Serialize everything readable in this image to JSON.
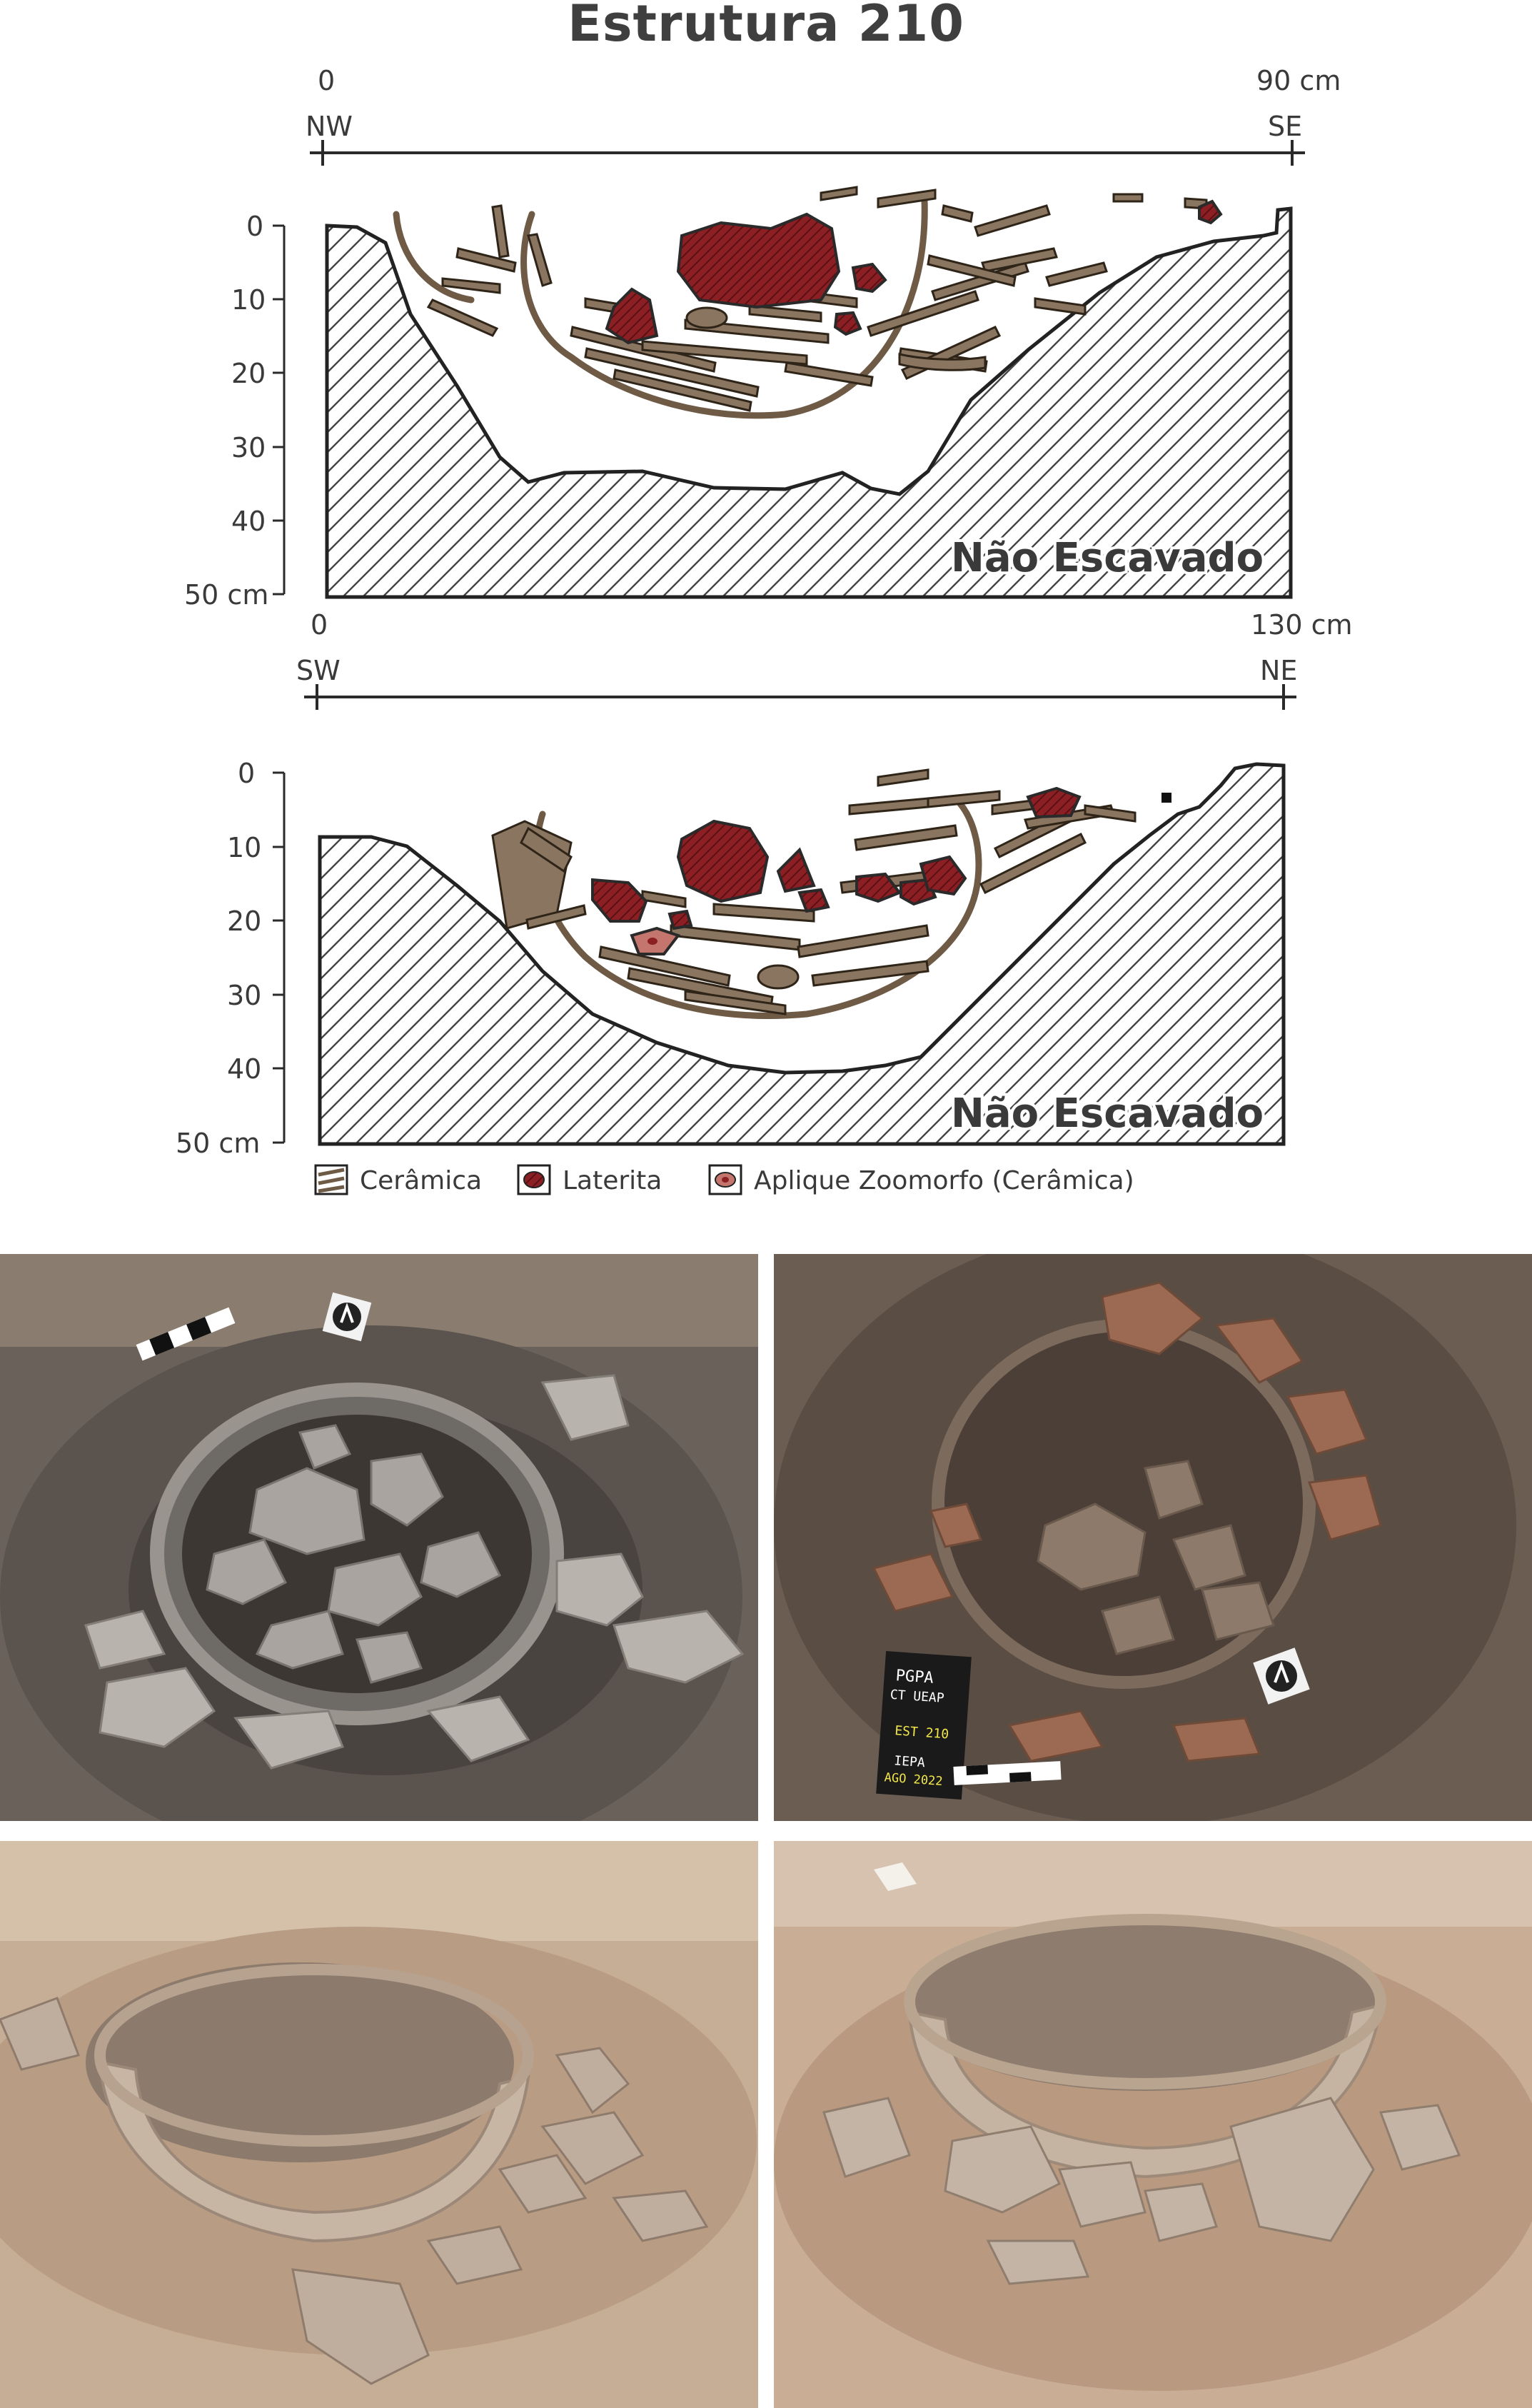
{
  "title": "Estrutura 210",
  "profile_nw_se": {
    "x_start": "0",
    "x_end": "90 cm",
    "dir_left": "NW",
    "dir_right": "SE",
    "depth_ticks": [
      "0",
      "10",
      "20",
      "30",
      "40",
      "50 cm"
    ],
    "unexcavated_label": "Não Escavado"
  },
  "profile_sw_ne": {
    "x_start": "0",
    "x_end": "130 cm",
    "dir_left": "SW",
    "dir_right": "NE",
    "depth_ticks": [
      "0",
      "10",
      "20",
      "30",
      "40",
      "50 cm"
    ],
    "unexcavated_label": "Não Escavado"
  },
  "legend": {
    "ceramic": "Cerâmica",
    "laterite": "Laterita",
    "zoomorph": "Aplique Zoomorfo (Cerâmica)"
  },
  "photo_label": {
    "line1": "PGPA",
    "line2": "CT UEAP",
    "line3": "EST 210",
    "line4": "IEPA",
    "line5": "AGO 2022"
  },
  "colors": {
    "ceramic": "#8a7560",
    "laterite": "#8b1f24",
    "outline": "#2a2a2a"
  }
}
